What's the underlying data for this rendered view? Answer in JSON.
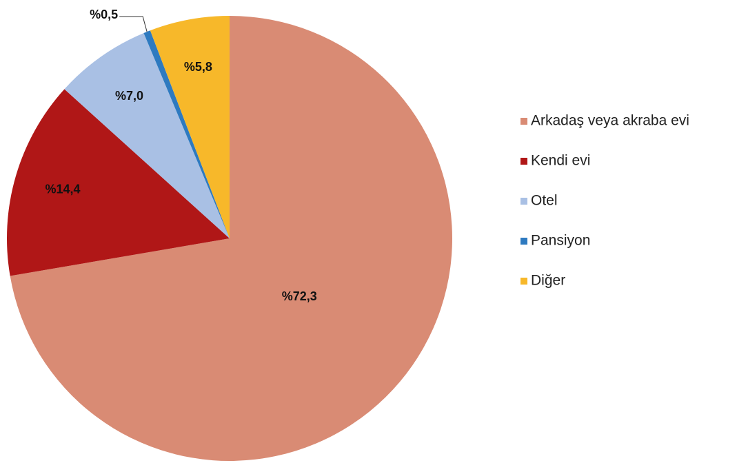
{
  "chart_data": {
    "type": "pie",
    "categories": [
      "Arkadaş veya akraba evi",
      "Kendi evi",
      "Otel",
      "Pansiyon",
      "Diğer"
    ],
    "values": [
      72.3,
      14.4,
      7.0,
      0.5,
      5.8
    ],
    "value_labels": [
      "%72,3",
      "%14,4",
      "%7,0",
      "%0,5",
      "%5,8"
    ],
    "colors": [
      "#d98b74",
      "#b01717",
      "#a9c0e4",
      "#2e7ac0",
      "#f7b82a"
    ],
    "legend": "right"
  }
}
